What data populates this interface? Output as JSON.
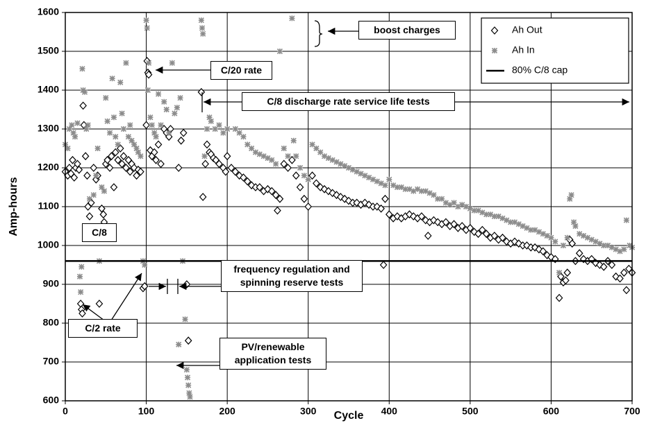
{
  "chart_data": {
    "type": "scatter",
    "xlabel": "Cycle",
    "ylabel": "Amp-hours",
    "xlim": [
      0,
      700
    ],
    "xticks": [
      0,
      100,
      200,
      300,
      400,
      500,
      600,
      700
    ],
    "ylim": [
      600,
      1600
    ],
    "yticks": [
      600,
      700,
      800,
      900,
      1000,
      1100,
      1200,
      1300,
      1400,
      1500,
      1600
    ],
    "grid": true,
    "legend": "upper right",
    "series": [
      {
        "name": "Ah Out",
        "marker": "diamond",
        "color": "#000000",
        "x": [
          0,
          3,
          5,
          7,
          9,
          11,
          13,
          15,
          17,
          19,
          20,
          21,
          22,
          23,
          25,
          27,
          28,
          30,
          32,
          35,
          38,
          40,
          42,
          45,
          47,
          48,
          50,
          52,
          55,
          57,
          60,
          62,
          65,
          68,
          70,
          72,
          75,
          78,
          80,
          82,
          85,
          88,
          90,
          93,
          96,
          98,
          100,
          101,
          102,
          103,
          105,
          107,
          110,
          112,
          115,
          118,
          122,
          125,
          128,
          130,
          140,
          143,
          146,
          150,
          152,
          168,
          170,
          173,
          175,
          178,
          180,
          183,
          186,
          190,
          195,
          198,
          200,
          205,
          210,
          215,
          220,
          225,
          230,
          235,
          240,
          245,
          250,
          255,
          260,
          262,
          265,
          270,
          275,
          280,
          285,
          290,
          295,
          300,
          305,
          310,
          315,
          320,
          325,
          330,
          335,
          340,
          345,
          350,
          355,
          360,
          365,
          370,
          375,
          380,
          385,
          390,
          393,
          395,
          400,
          405,
          410,
          415,
          420,
          425,
          430,
          435,
          440,
          445,
          448,
          450,
          455,
          460,
          465,
          470,
          475,
          480,
          485,
          490,
          495,
          500,
          505,
          510,
          515,
          520,
          525,
          530,
          535,
          540,
          545,
          550,
          555,
          560,
          565,
          570,
          575,
          580,
          585,
          590,
          595,
          600,
          605,
          610,
          612,
          615,
          618,
          620,
          623,
          626,
          630,
          635,
          640,
          645,
          650,
          655,
          660,
          665,
          670,
          675,
          680,
          685,
          690,
          693,
          696,
          700
        ],
        "values": [
          1190,
          1180,
          1200,
          1185,
          1220,
          1175,
          1200,
          1210,
          1195,
          850,
          835,
          825,
          1360,
          1310,
          1230,
          1180,
          1100,
          1075,
          1110,
          1200,
          1170,
          1180,
          850,
          1095,
          1080,
          1060,
          1210,
          1220,
          1200,
          1230,
          1150,
          1240,
          1220,
          1250,
          1210,
          1230,
          1200,
          1220,
          1190,
          1210,
          1200,
          1180,
          1195,
          1190,
          890,
          895,
          1310,
          1475,
          1445,
          1440,
          1245,
          1230,
          1240,
          1220,
          1260,
          1210,
          1300,
          1290,
          1280,
          1300,
          1200,
          1270,
          1290,
          900,
          755,
          1395,
          1125,
          1210,
          1260,
          1240,
          1235,
          1225,
          1220,
          1210,
          1200,
          1190,
          1230,
          1200,
          1190,
          1180,
          1175,
          1165,
          1155,
          1150,
          1150,
          1140,
          1145,
          1140,
          1130,
          1090,
          1120,
          1210,
          1200,
          1220,
          1180,
          1150,
          1120,
          1100,
          1180,
          1160,
          1150,
          1145,
          1140,
          1135,
          1130,
          1125,
          1120,
          1115,
          1110,
          1110,
          1105,
          1110,
          1105,
          1100,
          1100,
          1095,
          950,
          1120,
          1080,
          1070,
          1075,
          1070,
          1075,
          1080,
          1075,
          1070,
          1075,
          1065,
          1025,
          1060,
          1065,
          1060,
          1055,
          1060,
          1050,
          1055,
          1045,
          1050,
          1040,
          1045,
          1035,
          1030,
          1040,
          1030,
          1020,
          1025,
          1015,
          1020,
          1010,
          1005,
          1010,
          1005,
          1000,
          1000,
          995,
          995,
          990,
          985,
          975,
          970,
          965,
          865,
          920,
          905,
          910,
          930,
          1015,
          1005,
          960,
          980,
          965,
          960,
          965,
          955,
          950,
          945,
          960,
          950,
          920,
          915,
          930,
          885,
          940,
          930
        ]
      },
      {
        "name": "Ah In",
        "marker": "asterisk",
        "color": "#8c8c8c",
        "x": [
          0,
          3,
          5,
          8,
          10,
          12,
          15,
          18,
          19,
          20,
          21,
          22,
          24,
          26,
          28,
          30,
          32,
          35,
          38,
          40,
          42,
          45,
          48,
          50,
          52,
          55,
          58,
          60,
          62,
          65,
          68,
          70,
          72,
          75,
          78,
          80,
          82,
          85,
          88,
          90,
          93,
          96,
          98,
          100,
          101,
          102,
          103,
          105,
          107,
          110,
          112,
          115,
          118,
          122,
          125,
          128,
          132,
          135,
          138,
          140,
          142,
          145,
          148,
          150,
          151,
          152,
          153,
          154,
          168,
          169,
          170,
          172,
          175,
          178,
          180,
          185,
          190,
          195,
          200,
          210,
          215,
          220,
          225,
          230,
          235,
          240,
          245,
          250,
          255,
          260,
          265,
          270,
          275,
          280,
          282,
          285,
          290,
          295,
          300,
          305,
          310,
          315,
          320,
          325,
          330,
          335,
          340,
          345,
          350,
          355,
          360,
          365,
          370,
          375,
          380,
          385,
          390,
          395,
          400,
          405,
          410,
          415,
          420,
          425,
          430,
          435,
          440,
          445,
          450,
          455,
          460,
          465,
          470,
          475,
          480,
          485,
          490,
          495,
          500,
          505,
          510,
          515,
          520,
          525,
          530,
          535,
          540,
          545,
          550,
          555,
          560,
          565,
          570,
          575,
          580,
          585,
          590,
          595,
          600,
          605,
          610,
          615,
          620,
          623,
          625,
          628,
          630,
          635,
          640,
          645,
          650,
          655,
          660,
          665,
          670,
          675,
          680,
          685,
          690,
          693,
          697,
          700
        ],
        "values": [
          1260,
          1250,
          1300,
          1310,
          1290,
          1280,
          1315,
          920,
          880,
          945,
          1455,
          1400,
          1395,
          1300,
          1310,
          1120,
          1050,
          1130,
          1180,
          1250,
          960,
          1150,
          1140,
          1380,
          1320,
          1290,
          1430,
          1330,
          1280,
          1260,
          1420,
          1340,
          1300,
          1470,
          1280,
          1310,
          1270,
          1260,
          1250,
          1240,
          1230,
          960,
          950,
          1580,
          1560,
          1400,
          1470,
          1330,
          1310,
          1290,
          1280,
          1390,
          1310,
          1370,
          1350,
          1290,
          1470,
          1340,
          1355,
          745,
          1380,
          960,
          810,
          680,
          660,
          640,
          620,
          610,
          1580,
          1560,
          1545,
          1230,
          1300,
          1330,
          1320,
          1300,
          1310,
          1290,
          1300,
          1300,
          1290,
          1280,
          1260,
          1250,
          1240,
          1235,
          1230,
          1225,
          1220,
          1210,
          1500,
          1250,
          1230,
          1585,
          1270,
          1230,
          1200,
          1180,
          1170,
          1260,
          1250,
          1240,
          1230,
          1225,
          1220,
          1215,
          1210,
          1205,
          1200,
          1195,
          1190,
          1185,
          1180,
          1175,
          1170,
          1165,
          1160,
          1155,
          1170,
          1155,
          1150,
          1150,
          1145,
          1145,
          1140,
          1145,
          1140,
          1140,
          1135,
          1130,
          1120,
          1120,
          1110,
          1105,
          1110,
          1100,
          1105,
          1100,
          1095,
          1090,
          1090,
          1085,
          1080,
          1080,
          1075,
          1075,
          1070,
          1065,
          1060,
          1060,
          1055,
          1050,
          1045,
          1040,
          1040,
          1035,
          1030,
          1025,
          1020,
          1010,
          930,
          1000,
          1020,
          1120,
          1130,
          1060,
          1050,
          1030,
          1025,
          1020,
          1015,
          1010,
          1005,
          1000,
          1000,
          995,
          990,
          985,
          990,
          1065,
          1000,
          995
        ]
      },
      {
        "name": "80% C/8 cap",
        "marker": "line",
        "color": "#000000",
        "x": [
          0,
          700
        ],
        "values": [
          960,
          960
        ]
      }
    ],
    "annotations": [
      "boost charges",
      "C/20 rate",
      "C/8 discharge rate service life tests",
      "C/8",
      "frequency regulation and spinning reserve tests",
      "C/2 rate",
      "PV/renewable application tests"
    ]
  }
}
